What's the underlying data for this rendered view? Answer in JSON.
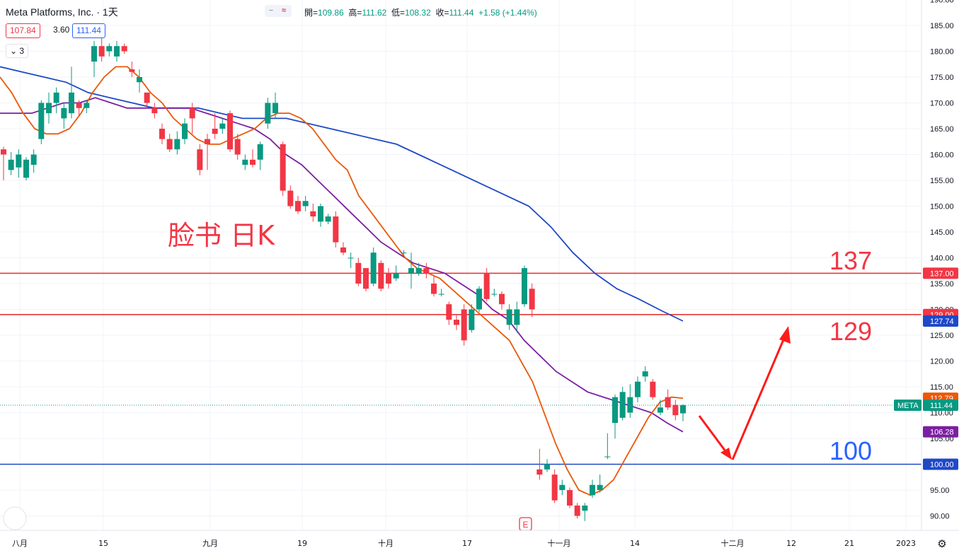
{
  "legend": {
    "title": "Meta Platforms, Inc. · 1天",
    "ohlc": [
      {
        "k": "開",
        "v": "109.86"
      },
      {
        "k": "高",
        "v": "111.62"
      },
      {
        "k": "低",
        "v": "108.32"
      },
      {
        "k": "收",
        "v": "111.44"
      },
      {
        "k": "",
        "v": "+1.58"
      },
      {
        "k": "",
        "v": "(+1.44%)"
      }
    ],
    "bid": "107.84",
    "spread": "3.60",
    "ask": "111.44",
    "indicators_collapsed": "3"
  },
  "annotations": {
    "main": "脸书 日K",
    "level_137": "137",
    "level_129": "129",
    "level_100": "100"
  },
  "colors": {
    "up": "#089981",
    "down": "#f23645",
    "ma_short": "#e9590a",
    "ma_mid": "#7b1fa2",
    "ma_long": "#1e48c8",
    "red_line": "#e53935",
    "blue_line": "#1e48c8",
    "arrow": "#ff1a1a"
  },
  "chart_data": {
    "type": "candlestick",
    "symbol": "META",
    "ylim": [
      88,
      190
    ],
    "y_ticks": [
      "90.00",
      "95.00",
      "100.00",
      "105.00",
      "110.00",
      "115.00",
      "120.00",
      "125.00",
      "130.00",
      "135.00",
      "140.00",
      "145.00",
      "150.00",
      "155.00",
      "160.00",
      "165.00",
      "170.00",
      "175.00",
      "180.00",
      "185.00",
      "190.00"
    ],
    "x_ticks": [
      "八月",
      "15",
      "九月",
      "19",
      "十月",
      "17",
      "十一月",
      "14",
      "十二月",
      "12",
      "21",
      "2023"
    ],
    "price_tags": [
      {
        "label": "137.00",
        "value": 137.0,
        "color": "#f23645"
      },
      {
        "label": "129.00",
        "value": 129.0,
        "color": "#f23645"
      },
      {
        "label": "127.74",
        "value": 127.74,
        "color": "#1e48c8"
      },
      {
        "label": "112.79",
        "value": 112.79,
        "color": "#e9590a"
      },
      {
        "label": "111.44",
        "value": 111.44,
        "color": "#089981",
        "symbol": "META"
      },
      {
        "label": "106.28",
        "value": 106.28,
        "color": "#7b1fa2"
      },
      {
        "label": "100.00",
        "value": 100.0,
        "color": "#1e48c8"
      }
    ],
    "h_lines": [
      137.0,
      129.0,
      100.0
    ],
    "earnings_marker": "E",
    "candles": [
      [
        161.0,
        160.0,
        161.5,
        155.0
      ],
      [
        157.0,
        159.0,
        160.5,
        156.0
      ],
      [
        157.5,
        160.0,
        161.0,
        155.5
      ],
      [
        155.5,
        159.0,
        159.5,
        155.0
      ],
      [
        158.0,
        160.0,
        161.0,
        156.5
      ],
      [
        163.0,
        170.0,
        170.5,
        162.0
      ],
      [
        168.0,
        170.0,
        172.0,
        166.0
      ],
      [
        170.0,
        172.0,
        173.0,
        168.0
      ],
      [
        167.0,
        169.0,
        170.0,
        165.0
      ],
      [
        168.0,
        172.0,
        177.0,
        167.0
      ],
      [
        170.0,
        169.0,
        170.5,
        167.5
      ],
      [
        169.0,
        170.0,
        170.5,
        168.0
      ],
      [
        178.0,
        181.0,
        182.0,
        175.0
      ],
      [
        181.0,
        179.0,
        183.0,
        178.0
      ],
      [
        180.0,
        181.0,
        181.5,
        179.0
      ],
      [
        179.0,
        181.0,
        182.0,
        178.0
      ],
      [
        181.0,
        180.0,
        181.5,
        179.5
      ],
      [
        176.5,
        176.0,
        178.0,
        175.0
      ],
      [
        174.0,
        175.0,
        176.5,
        172.0
      ],
      [
        172.0,
        170.0,
        172.0,
        169.0
      ],
      [
        169.0,
        168.0,
        170.0,
        167.0
      ],
      [
        165.0,
        163.0,
        166.0,
        162.0
      ],
      [
        163.0,
        161.0,
        164.0,
        160.5
      ],
      [
        161.0,
        163.0,
        164.5,
        160.0
      ],
      [
        163.0,
        166.0,
        167.0,
        162.0
      ],
      [
        169.0,
        167.0,
        170.0,
        164.0
      ],
      [
        161.0,
        157.0,
        162.0,
        156.0
      ],
      [
        163.0,
        162.0,
        164.0,
        157.0
      ],
      [
        165.0,
        164.0,
        168.0,
        163.0
      ],
      [
        165.0,
        166.0,
        167.0,
        164.0
      ],
      [
        168.0,
        161.0,
        168.5,
        160.5
      ],
      [
        163.0,
        160.0,
        164.0,
        159.0
      ],
      [
        158.0,
        159.0,
        160.0,
        157.0
      ],
      [
        159.0,
        158.0,
        161.0,
        157.5
      ],
      [
        159.0,
        162.0,
        162.5,
        157.0
      ],
      [
        166.0,
        170.0,
        171.0,
        165.0
      ],
      [
        168.0,
        170.0,
        172.0,
        167.0
      ],
      [
        162.0,
        153.0,
        162.5,
        152.0
      ],
      [
        153.0,
        150.0,
        154.0,
        149.5
      ],
      [
        151.0,
        149.0,
        152.0,
        148.5
      ],
      [
        150.0,
        151.0,
        152.0,
        149.0
      ],
      [
        149.0,
        148.0,
        150.5,
        147.0
      ],
      [
        147.0,
        150.0,
        150.5,
        146.0
      ],
      [
        147.0,
        148.0,
        148.5,
        146.5
      ],
      [
        148.0,
        143.0,
        149.0,
        142.0
      ],
      [
        142.0,
        141.0,
        143.0,
        140.5
      ],
      [
        140.0,
        140.0,
        141.0,
        138.0
      ],
      [
        139.0,
        135.0,
        140.0,
        134.5
      ],
      [
        138.0,
        134.0,
        138.0,
        133.5
      ],
      [
        135.0,
        141.0,
        142.0,
        134.5
      ],
      [
        139.0,
        134.0,
        139.5,
        133.5
      ],
      [
        137.0,
        135.0,
        138.0,
        134.0
      ],
      [
        136.0,
        137.0,
        138.5,
        135.5
      ],
      [
        141.0,
        141.0,
        141.5,
        140.0
      ],
      [
        137.0,
        138.0,
        141.0,
        134.0
      ],
      [
        137.0,
        138.0,
        139.0,
        136.5
      ],
      [
        138.0,
        137.0,
        139.0,
        136.0
      ],
      [
        135.0,
        133.0,
        136.5,
        132.5
      ],
      [
        133.0,
        133.0,
        134.0,
        132.5
      ],
      [
        131.0,
        128.0,
        131.5,
        127.0
      ],
      [
        128.0,
        127.0,
        129.0,
        126.0
      ],
      [
        130.0,
        124.0,
        131.0,
        123.0
      ],
      [
        126.0,
        130.0,
        131.0,
        125.5
      ],
      [
        130.0,
        134.0,
        134.5,
        129.5
      ],
      [
        137.0,
        132.0,
        138.0,
        131.5
      ],
      [
        133.0,
        133.0,
        134.0,
        132.5
      ],
      [
        133.0,
        131.0,
        133.5,
        130.0
      ],
      [
        127.0,
        130.0,
        131.0,
        126.0
      ],
      [
        127.0,
        130.0,
        131.5,
        125.5
      ],
      [
        131.0,
        138.0,
        138.5,
        130.5
      ],
      [
        134.0,
        130.0,
        135.0,
        128.5
      ],
      [
        99.0,
        98.0,
        103.0,
        97.0
      ],
      [
        99.0,
        100.0,
        101.0,
        98.5
      ],
      [
        98.0,
        93.0,
        99.0,
        92.5
      ],
      [
        95.0,
        96.0,
        97.0,
        94.0
      ],
      [
        95.0,
        92.0,
        95.5,
        91.5
      ],
      [
        92.0,
        90.0,
        92.5,
        89.5
      ],
      [
        91.0,
        92.0,
        92.5,
        89.0
      ],
      [
        94.0,
        96.0,
        97.0,
        93.5
      ],
      [
        95.0,
        96.0,
        98.0,
        94.5
      ],
      [
        101.5,
        101.5,
        106.0,
        101.0
      ],
      [
        108.0,
        113.0,
        113.5,
        105.0
      ],
      [
        109.0,
        114.0,
        115.0,
        108.5
      ],
      [
        110.0,
        113.0,
        115.5,
        109.0
      ],
      [
        113.0,
        116.0,
        117.0,
        112.0
      ],
      [
        117.0,
        118.0,
        119.0,
        116.0
      ],
      [
        116.0,
        113.0,
        116.5,
        112.5
      ],
      [
        110.0,
        111.0,
        112.5,
        109.5
      ],
      [
        113.0,
        111.0,
        114.5,
        110.5
      ],
      [
        111.5,
        109.5,
        112.5,
        108.5
      ],
      [
        109.86,
        111.44,
        111.62,
        108.32
      ]
    ],
    "ma_short": [
      175,
      172,
      168,
      165,
      164,
      164,
      165,
      168,
      172,
      175,
      177,
      177,
      175,
      172,
      170,
      167,
      165,
      163,
      162,
      162,
      163,
      164,
      165,
      167,
      168,
      168,
      167,
      165,
      162,
      159,
      157,
      152,
      149,
      146,
      143,
      140,
      138,
      137,
      136,
      134,
      132,
      130,
      128,
      126,
      124,
      120,
      116,
      110,
      104,
      99,
      95,
      94,
      95,
      97,
      101,
      105,
      109,
      112,
      113,
      112.79
    ],
    "ma_mid": [
      168,
      168,
      168,
      169,
      170,
      170,
      171,
      170,
      169,
      169,
      169,
      169,
      169,
      168,
      167,
      166,
      165,
      163,
      160,
      158,
      155,
      152,
      149,
      146,
      143,
      141,
      139,
      138,
      137,
      135,
      133,
      130,
      128,
      124,
      121,
      118,
      116,
      114,
      113,
      112,
      111,
      110,
      108,
      106.28
    ],
    "ma_long": [
      177,
      176,
      175,
      174,
      172,
      171,
      170,
      169,
      169,
      169,
      168,
      167,
      167,
      167,
      166,
      165,
      164,
      163,
      162,
      160,
      158,
      156,
      154,
      152,
      150,
      146,
      141,
      137,
      134,
      132,
      129.8,
      127.74
    ]
  }
}
